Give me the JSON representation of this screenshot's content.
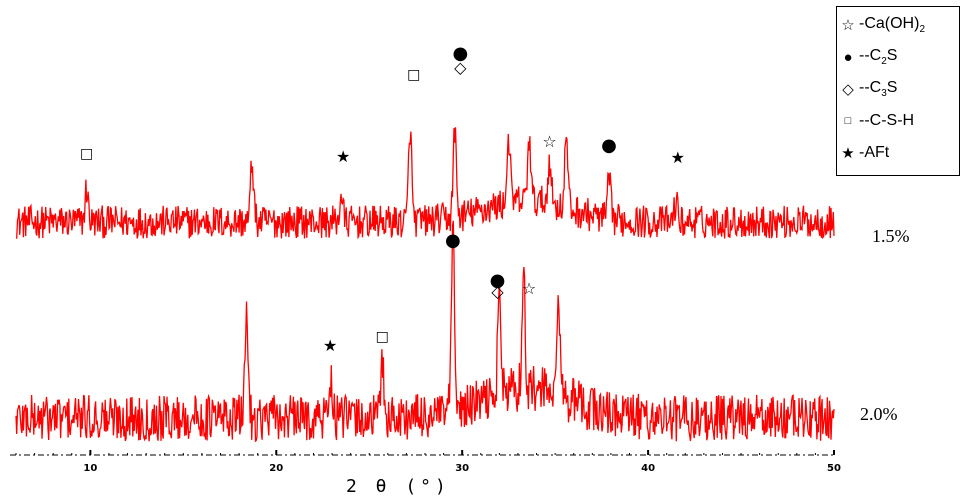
{
  "chart_data": {
    "type": "line",
    "title": "",
    "xlabel": "2 θ (°)",
    "ylabel": "",
    "xlim": [
      6,
      50
    ],
    "xticks": [
      10,
      20,
      30,
      40,
      50
    ],
    "grid": false,
    "legend_placement": "top-right",
    "line_color": "#ff0000",
    "legend": [
      {
        "symbol": "open-star",
        "glyph": "☆",
        "label": "-Ca(OH)",
        "sub": "2"
      },
      {
        "symbol": "filled-circle",
        "glyph": "●",
        "label": "--C",
        "sub": "2",
        "after": "S"
      },
      {
        "symbol": "open-diamond",
        "glyph": "◇",
        "label": "--C",
        "sub": "3",
        "after": "S"
      },
      {
        "symbol": "open-square",
        "glyph": "□",
        "label": "--C-S-H",
        "sub": "",
        "after": ""
      },
      {
        "symbol": "filled-star",
        "glyph": "★",
        "label": "-AFt",
        "sub": "",
        "after": ""
      }
    ],
    "series": [
      {
        "name": "1.5%",
        "peaks": [
          {
            "x": 9.8,
            "height": 0.55
          },
          {
            "x": 18.7,
            "height": 1.0
          },
          {
            "x": 23.5,
            "height": 0.45
          },
          {
            "x": 27.2,
            "height": 1.55
          },
          {
            "x": 29.6,
            "height": 1.45
          },
          {
            "x": 32.5,
            "height": 1.1
          },
          {
            "x": 33.6,
            "height": 1.05
          },
          {
            "x": 34.7,
            "height": 0.75
          },
          {
            "x": 35.6,
            "height": 1.2
          },
          {
            "x": 37.9,
            "height": 0.65
          },
          {
            "x": 41.5,
            "height": 0.35
          }
        ],
        "annotations": [
          {
            "x": 9.8,
            "glyph": "□",
            "kind": "C-S-H"
          },
          {
            "x": 23.6,
            "glyph": "★",
            "kind": "AFt"
          },
          {
            "x": 27.4,
            "glyph": "□",
            "kind": "C-S-H"
          },
          {
            "x": 29.9,
            "glyph": "◇",
            "kind": "C3S"
          },
          {
            "x": 29.9,
            "glyph": "●",
            "kind": "C2S"
          },
          {
            "x": 34.7,
            "glyph": "☆",
            "kind": "Ca(OH)2"
          },
          {
            "x": 37.9,
            "glyph": "●",
            "kind": "C2S"
          },
          {
            "x": 41.6,
            "glyph": "★",
            "kind": "AFt"
          }
        ]
      },
      {
        "name": "2.0%",
        "peaks": [
          {
            "x": 18.4,
            "height": 1.3
          },
          {
            "x": 22.9,
            "height": 0.5
          },
          {
            "x": 25.7,
            "height": 0.7
          },
          {
            "x": 29.5,
            "height": 2.05
          },
          {
            "x": 32.0,
            "height": 1.2
          },
          {
            "x": 33.3,
            "height": 1.35
          },
          {
            "x": 35.2,
            "height": 1.1
          }
        ],
        "annotations": [
          {
            "x": 22.9,
            "glyph": "★",
            "kind": "AFt"
          },
          {
            "x": 25.7,
            "glyph": "□",
            "kind": "C-S-H"
          },
          {
            "x": 29.5,
            "glyph": "●",
            "kind": "C2S"
          },
          {
            "x": 31.9,
            "glyph": "●",
            "kind": "C2S"
          },
          {
            "x": 31.9,
            "glyph": "◇",
            "kind": "C3S"
          },
          {
            "x": 33.6,
            "glyph": "☆",
            "kind": "Ca(OH)2"
          }
        ]
      }
    ]
  }
}
